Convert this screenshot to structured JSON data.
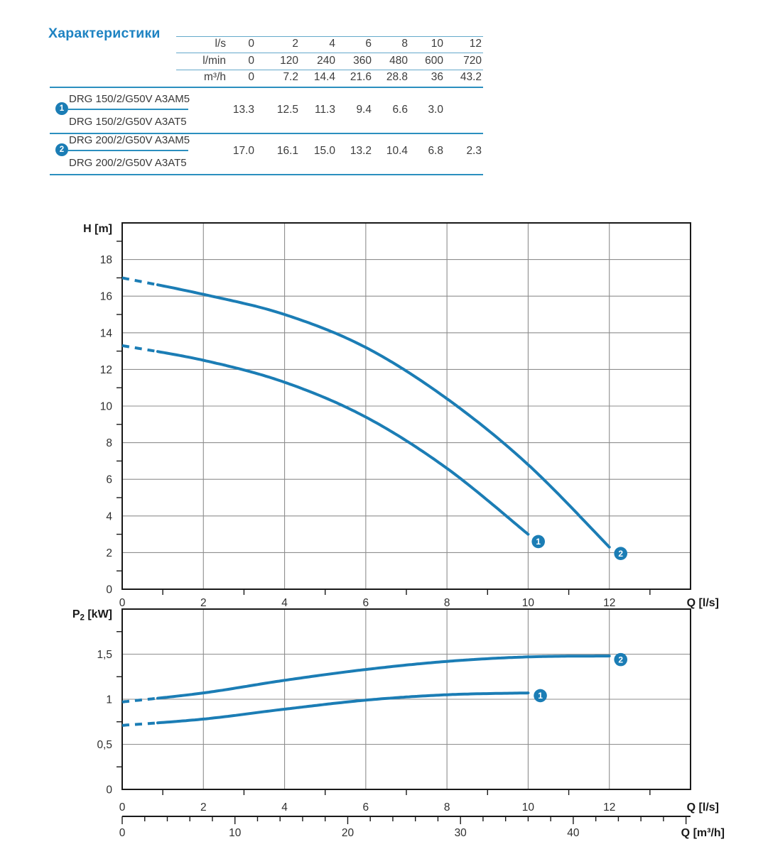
{
  "title": "Характеристики",
  "colors": {
    "curve_blue": "#1B7DB5",
    "title_blue": "#1E83C2",
    "rule_light": "#64A9CB",
    "rule_strong": "#2B8FBF",
    "grid_gray": "#8E8E8E",
    "axis_dark": "#191919",
    "text_dark": "#3A3A3A",
    "marker_text": "#FFFFFF"
  },
  "table": {
    "unit_rows": [
      {
        "unit": "l/s",
        "values": [
          "0",
          "2",
          "4",
          "6",
          "8",
          "10",
          "12"
        ]
      },
      {
        "unit": "l/min",
        "values": [
          "0",
          "120",
          "240",
          "360",
          "480",
          "600",
          "720"
        ]
      },
      {
        "unit": "m³/h",
        "values": [
          "0",
          "7.2",
          "14.4",
          "21.6",
          "28.8",
          "36",
          "43.2"
        ]
      }
    ],
    "groups": [
      {
        "marker": "1",
        "models": [
          "DRG 150/2/G50V A3AM5",
          "DRG 150/2/G50V A3AT5"
        ],
        "values": [
          "13.3",
          "12.5",
          "11.3",
          "9.4",
          "6.6",
          "3.0"
        ]
      },
      {
        "marker": "2",
        "models": [
          "DRG 200/2/G50V A3AM5",
          "DRG 200/2/G50V A3AT5"
        ],
        "values": [
          "17.0",
          "16.1",
          "15.0",
          "13.2",
          "10.4",
          "6.8",
          "2.3"
        ]
      }
    ]
  },
  "chart_data": [
    {
      "type": "line",
      "title": "Pump head curves",
      "ylabel": "H [m]",
      "xlabel": "Q [l/s]",
      "xlim": [
        0,
        14
      ],
      "ylim": [
        0,
        20
      ],
      "grid": true,
      "x_tick_values": [
        0,
        2,
        4,
        6,
        8,
        10,
        12
      ],
      "x_tick_labels": [
        "0",
        "2",
        "4",
        "6",
        "8",
        "10",
        "12"
      ],
      "y_tick_values": [
        0,
        2,
        4,
        6,
        8,
        10,
        12,
        14,
        16,
        18
      ],
      "y_tick_labels": [
        "0",
        "2",
        "4",
        "6",
        "8",
        "10",
        "12",
        "14",
        "16",
        "18"
      ],
      "series": [
        {
          "name": "1",
          "label": "DRG 150/2/G50V",
          "points": [
            [
              0,
              13.3
            ],
            [
              2,
              12.5
            ],
            [
              4,
              11.3
            ],
            [
              6,
              9.4
            ],
            [
              8,
              6.6
            ],
            [
              10,
              3.0
            ]
          ],
          "dash_until_x": 0.85,
          "marker": {
            "label": "1",
            "x": 10.25,
            "y": 2.6
          }
        },
        {
          "name": "2",
          "label": "DRG 200/2/G50V",
          "points": [
            [
              0,
              17.0
            ],
            [
              2,
              16.1
            ],
            [
              4,
              15.0
            ],
            [
              6,
              13.2
            ],
            [
              8,
              10.4
            ],
            [
              10,
              6.8
            ],
            [
              12,
              2.3
            ]
          ],
          "dash_until_x": 0.85,
          "marker": {
            "label": "2",
            "x": 12.28,
            "y": 1.95
          }
        }
      ]
    },
    {
      "type": "line",
      "title": "Pump shaft power curves",
      "ylabel": "P₂ [kW]",
      "xlabel": "Q [l/s]",
      "xlabel_secondary": "Q [m³/h]",
      "xlim": [
        0,
        14
      ],
      "ylim": [
        0,
        2
      ],
      "grid": true,
      "x_tick_values": [
        0,
        2,
        4,
        6,
        8,
        10,
        12
      ],
      "x_tick_labels": [
        "0",
        "2",
        "4",
        "6",
        "8",
        "10",
        "12"
      ],
      "y_tick_values": [
        0,
        0.5,
        1,
        1.5
      ],
      "y_tick_labels": [
        "0",
        "0,5",
        "1",
        "1,5"
      ],
      "secondary_axis": {
        "unit": "m³/h",
        "factor_from_ls": 3.6,
        "tick_step": 2,
        "label_values": [
          0,
          10,
          20,
          30,
          40
        ],
        "tick_labels": [
          "0",
          "10",
          "20",
          "30",
          "40"
        ],
        "max": 50
      },
      "series": [
        {
          "name": "1",
          "label": "DRG 150/2/G50V",
          "points": [
            [
              0,
              0.71
            ],
            [
              2,
              0.78
            ],
            [
              4,
              0.89
            ],
            [
              6,
              0.99
            ],
            [
              8,
              1.05
            ],
            [
              10,
              1.07
            ]
          ],
          "dash_until_x": 0.85,
          "marker": {
            "label": "1",
            "x": 10.3,
            "y": 1.04
          }
        },
        {
          "name": "2",
          "label": "DRG 200/2/G50V",
          "points": [
            [
              0,
              0.97
            ],
            [
              2,
              1.07
            ],
            [
              4,
              1.21
            ],
            [
              6,
              1.33
            ],
            [
              8,
              1.42
            ],
            [
              10,
              1.47
            ],
            [
              12,
              1.48
            ]
          ],
          "dash_until_x": 0.85,
          "marker": {
            "label": "2",
            "x": 12.28,
            "y": 1.44
          }
        }
      ]
    }
  ]
}
